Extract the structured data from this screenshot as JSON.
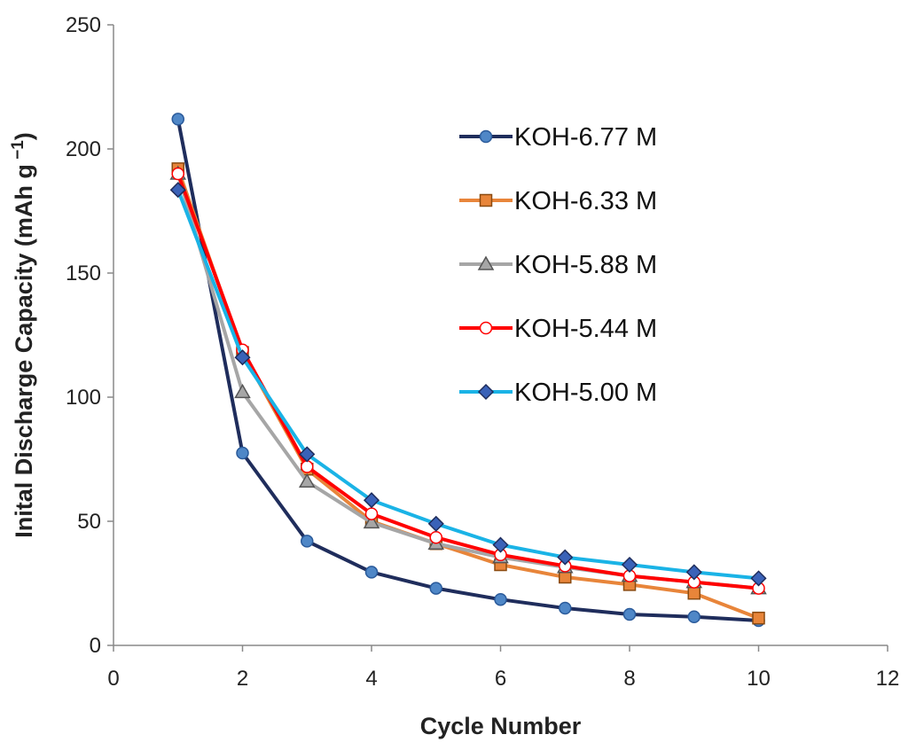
{
  "chart_data": {
    "type": "line",
    "title": "",
    "xlabel": "Cycle Number",
    "ylabel_main": "Inital Discharge Capacity (mAh g",
    "ylabel_sup": " −1",
    "ylabel_close": ")",
    "xlim": [
      0,
      12
    ],
    "ylim": [
      0,
      250
    ],
    "xticks": [
      0,
      2,
      4,
      6,
      8,
      10,
      12
    ],
    "yticks": [
      0,
      50,
      100,
      150,
      200,
      250
    ],
    "grid": false,
    "legend_position": "upper-right",
    "x": [
      1,
      2,
      3,
      4,
      5,
      6,
      7,
      8,
      9,
      10
    ],
    "series": [
      {
        "name": "KOH-6.77 M",
        "color": "#1f2d5c",
        "marker": "circle",
        "marker_fill": "#4f87c7",
        "marker_stroke": "#2a5a9a",
        "values": [
          212,
          77.5,
          42,
          29.5,
          23,
          18.5,
          15,
          12.5,
          11.5,
          10
        ]
      },
      {
        "name": "KOH-6.33 M",
        "color": "#e8853a",
        "marker": "square",
        "marker_fill": "#e8853a",
        "marker_stroke": "#8a4a10",
        "values": [
          192,
          118,
          71,
          50,
          41,
          32.5,
          27.5,
          24.5,
          21,
          11
        ]
      },
      {
        "name": "KOH-5.88 M",
        "color": "#a6a6a6",
        "marker": "triangle",
        "marker_fill": "#a6a6a6",
        "marker_stroke": "#555555",
        "values": [
          190,
          102,
          66,
          49.5,
          41,
          35.5,
          31.5,
          28,
          25.5,
          23
        ]
      },
      {
        "name": "KOH-5.44 M",
        "color": "#ff0000",
        "marker": "circle",
        "marker_fill": "#ffffff",
        "marker_stroke": "#ff0000",
        "values": [
          190,
          119,
          72,
          53,
          43.5,
          36.5,
          32,
          28,
          25.5,
          23
        ]
      },
      {
        "name": "KOH-5.00 M",
        "color": "#1ab3e6",
        "marker": "diamond",
        "marker_fill": "#3a62b8",
        "marker_stroke": "#1f2d5c",
        "values": [
          183.5,
          116,
          77,
          58.5,
          49,
          40.5,
          35.5,
          32.5,
          29.5,
          27
        ]
      }
    ]
  }
}
